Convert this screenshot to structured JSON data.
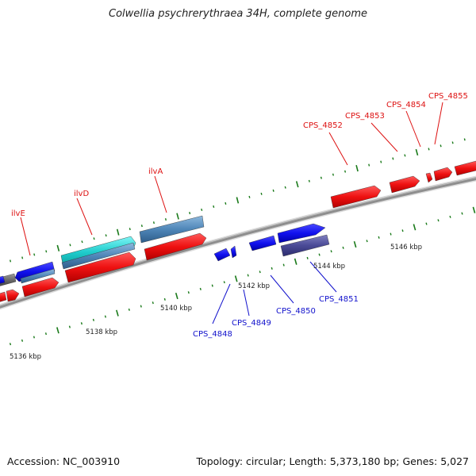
{
  "title": "Colwellia psychrerythraea 34H, complete genome",
  "footer": {
    "accession_label": "Accession:",
    "accession": "NC_003910",
    "topology_label": "Topology:",
    "topology": "circular",
    "length_label": "Length:",
    "length": "5,373,180 bp",
    "genes_label": "Genes:",
    "genes": "5,027"
  },
  "colors": {
    "forward_label": "#dd1111",
    "reverse_label": "#1111cc",
    "backbone": "#8e8e8e",
    "tick": "#1a7a1a",
    "forward_gene": "#ee1111",
    "reverse_gene": "#1111ee",
    "rna": "#3399cc"
  },
  "scale_labels": [
    "5136 kbp",
    "5138 kbp",
    "5140 kbp",
    "5142 kbp",
    "5144 kbp",
    "5146 kbp"
  ],
  "forward_labels": [
    "ilvE",
    "ilvD",
    "ilvA",
    "CPS_4852",
    "CPS_4853",
    "CPS_4854",
    "CPS_4855"
  ],
  "reverse_labels": [
    "CPS_4848",
    "CPS_4849",
    "CPS_4850",
    "CPS_4851"
  ]
}
